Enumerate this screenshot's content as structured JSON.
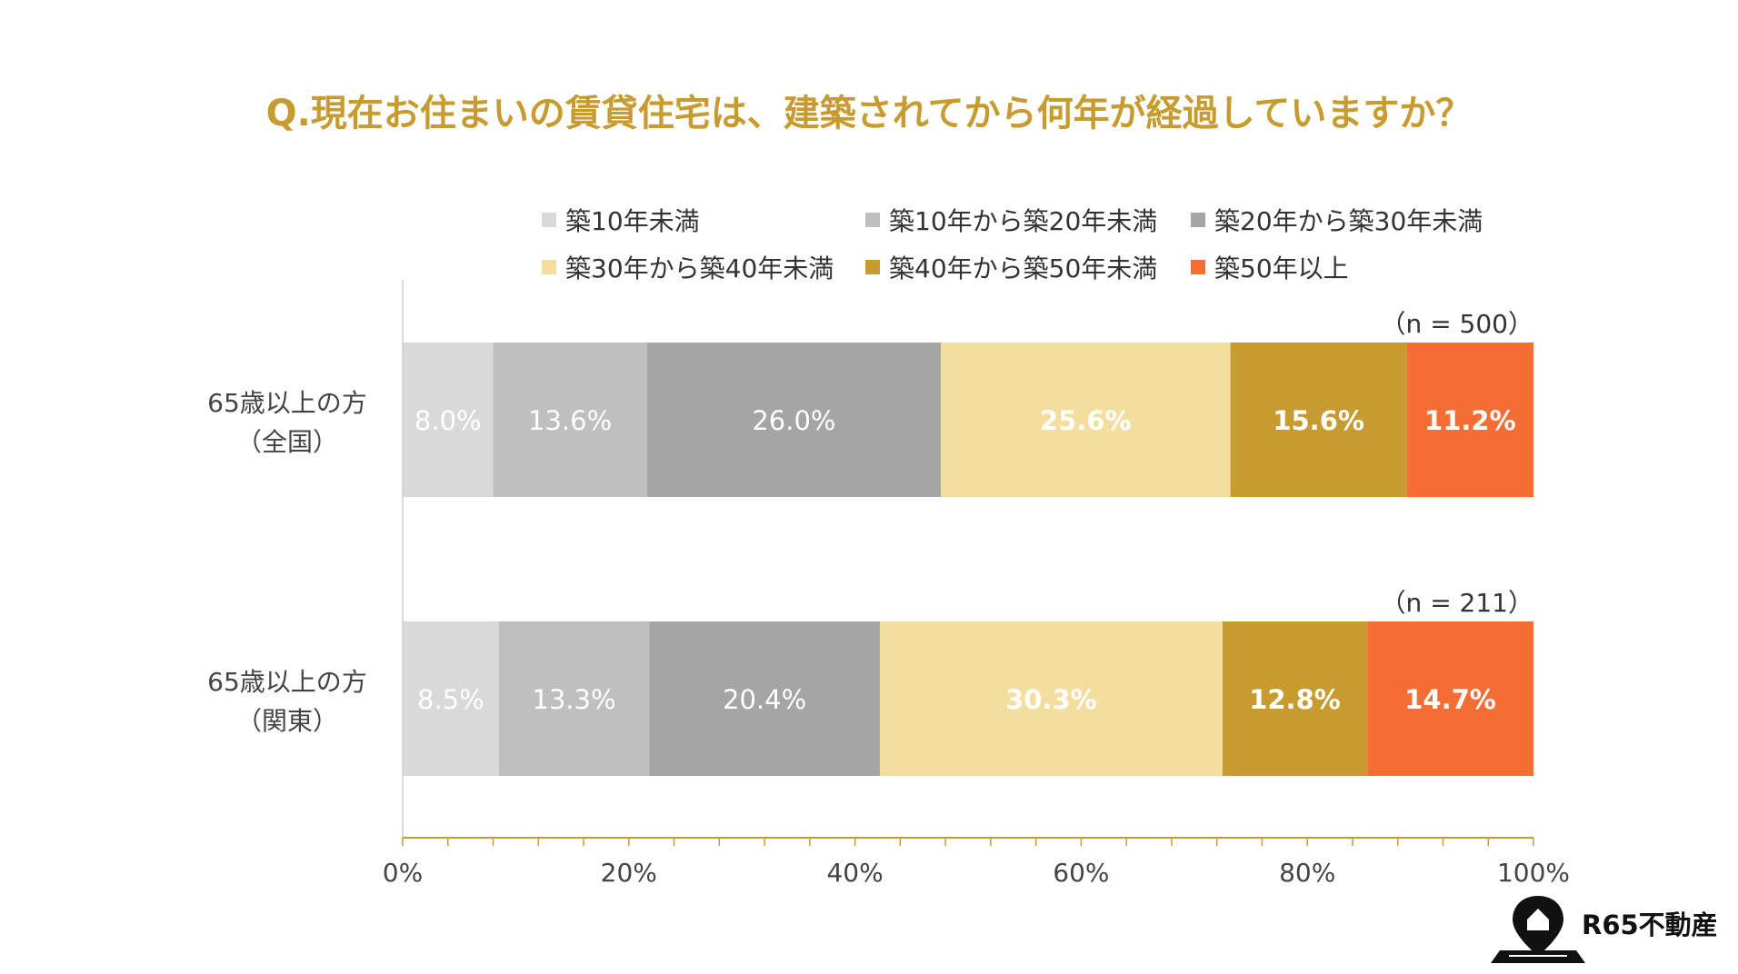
{
  "chart_data": {
    "type": "bar",
    "orientation": "horizontal",
    "stacked": true,
    "title": "Q.現在お住まいの賃貸住宅は、建築されてから何年が経過していますか？",
    "categories": [
      {
        "line1": "65歳以上の方",
        "line2": "（全国）",
        "n_label": "（n = 500）"
      },
      {
        "line1": "65歳以上の方",
        "line2": "（関東）",
        "n_label": "（n = 211）"
      }
    ],
    "series": [
      {
        "name": "築10年未満",
        "color": "#d9d9d9",
        "label_color": "#ffffff",
        "bold": false,
        "values": [
          8.0,
          8.5
        ]
      },
      {
        "name": "築10年から築20年未満",
        "color": "#bfbfbf",
        "label_color": "#ffffff",
        "bold": false,
        "values": [
          13.6,
          13.3
        ]
      },
      {
        "name": "築20年から築30年未満",
        "color": "#a5a5a5",
        "label_color": "#ffffff",
        "bold": false,
        "values": [
          26.0,
          20.4
        ]
      },
      {
        "name": "築30年から築40年未満",
        "color": "#f3dd9f",
        "label_color": "#ffffff",
        "bold": true,
        "values": [
          25.6,
          30.3
        ]
      },
      {
        "name": "築40年から築50年未満",
        "color": "#c89b30",
        "label_color": "#ffffff",
        "bold": true,
        "values": [
          15.6,
          12.8
        ]
      },
      {
        "name": "築50年以上",
        "color": "#f46d34",
        "label_color": "#ffffff",
        "bold": true,
        "values": [
          11.2,
          14.7
        ]
      }
    ],
    "xlim": [
      0,
      100
    ],
    "xticks": [
      "0%",
      "20%",
      "40%",
      "60%",
      "80%",
      "100%"
    ],
    "value_suffix": "%",
    "legend_position": "top"
  },
  "colors": {
    "title": "#c89b30",
    "axis": "#c89b30"
  },
  "logo": {
    "text": "R65不動産",
    "icon": "house-pin-icon"
  }
}
